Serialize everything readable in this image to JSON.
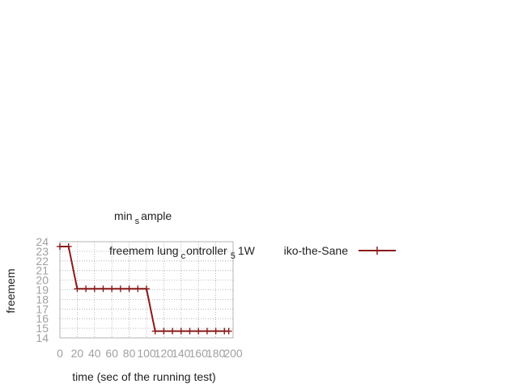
{
  "chart_data": {
    "type": "line",
    "title": {
      "base": "min",
      "sub": "s",
      "rest": "ample"
    },
    "xlabel": "time (sec of the running test)",
    "ylabel": "freemem",
    "xlim": [
      0,
      200
    ],
    "ylim": [
      14,
      24
    ],
    "xticks": [
      0,
      20,
      40,
      60,
      80,
      100,
      120,
      140,
      160,
      180,
      200
    ],
    "yticks": [
      14,
      15,
      16,
      17,
      18,
      19,
      20,
      21,
      22,
      23,
      24
    ],
    "grid": true,
    "legend_position": "top-right",
    "colors": {
      "series": "#8b1a1a"
    },
    "series": [
      {
        "name": "freemem lung_controller_5 1W ko-the-Sane",
        "legend_parts": {
          "t1": "freemem lung",
          "s1": "c",
          "t2": "ontroller",
          "s2": "5",
          "t3": "1W",
          "t4": "iko-the-Sane"
        },
        "x": [
          0,
          10,
          20,
          30,
          40,
          50,
          60,
          70,
          80,
          90,
          100,
          110,
          120,
          130,
          140,
          150,
          160,
          170,
          180,
          190,
          195
        ],
        "y": [
          23.5,
          23.5,
          19.1,
          19.1,
          19.1,
          19.1,
          19.1,
          19.1,
          19.1,
          19.1,
          19.1,
          14.7,
          14.7,
          14.7,
          14.7,
          14.7,
          14.7,
          14.7,
          14.7,
          14.7,
          14.7
        ]
      }
    ]
  }
}
